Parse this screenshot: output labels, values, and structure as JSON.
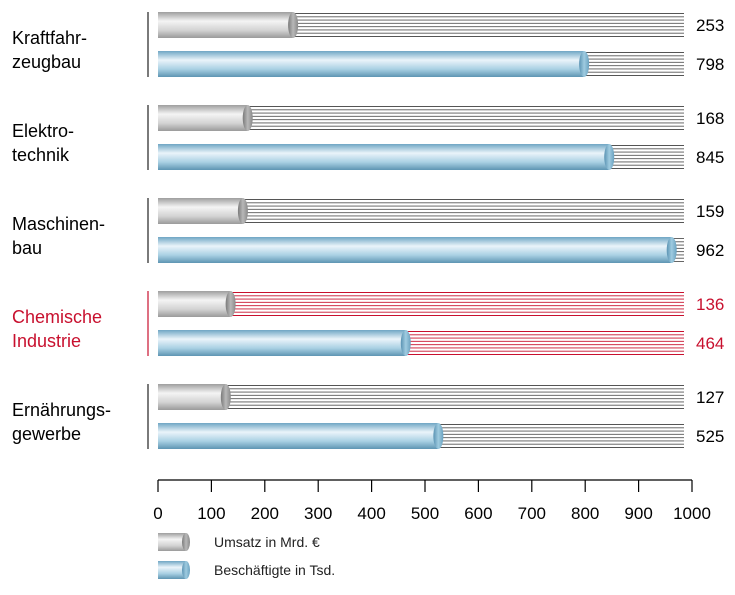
{
  "chart_data": {
    "type": "bar",
    "orientation": "horizontal",
    "categories": [
      {
        "line1": "Kraftfahr-",
        "line2": "zeugbau",
        "highlight": false
      },
      {
        "line1": "Elektro-",
        "line2": "technik",
        "highlight": false
      },
      {
        "line1": "Maschinen-",
        "line2": "bau",
        "highlight": false
      },
      {
        "line1": "Chemische",
        "line2": "Industrie",
        "highlight": true
      },
      {
        "line1": "Ernährungs-",
        "line2": "gewerbe",
        "highlight": false
      }
    ],
    "series": [
      {
        "name": "Umsatz in Mrd. €",
        "values": [
          253,
          168,
          159,
          136,
          127
        ]
      },
      {
        "name": "Beschäftigte in Tsd.",
        "values": [
          798,
          845,
          962,
          464,
          525
        ]
      }
    ],
    "xlim": [
      0,
      1000
    ],
    "xticks": [
      0,
      100,
      200,
      300,
      400,
      500,
      600,
      700,
      800,
      900,
      1000
    ],
    "legend_position": "bottom-left",
    "colors": {
      "highlight": "#c8102e",
      "text": "#000000",
      "grey_series": "#bdbdbd",
      "blue_series": "#8fbfd6",
      "hatch": "#555555"
    }
  }
}
